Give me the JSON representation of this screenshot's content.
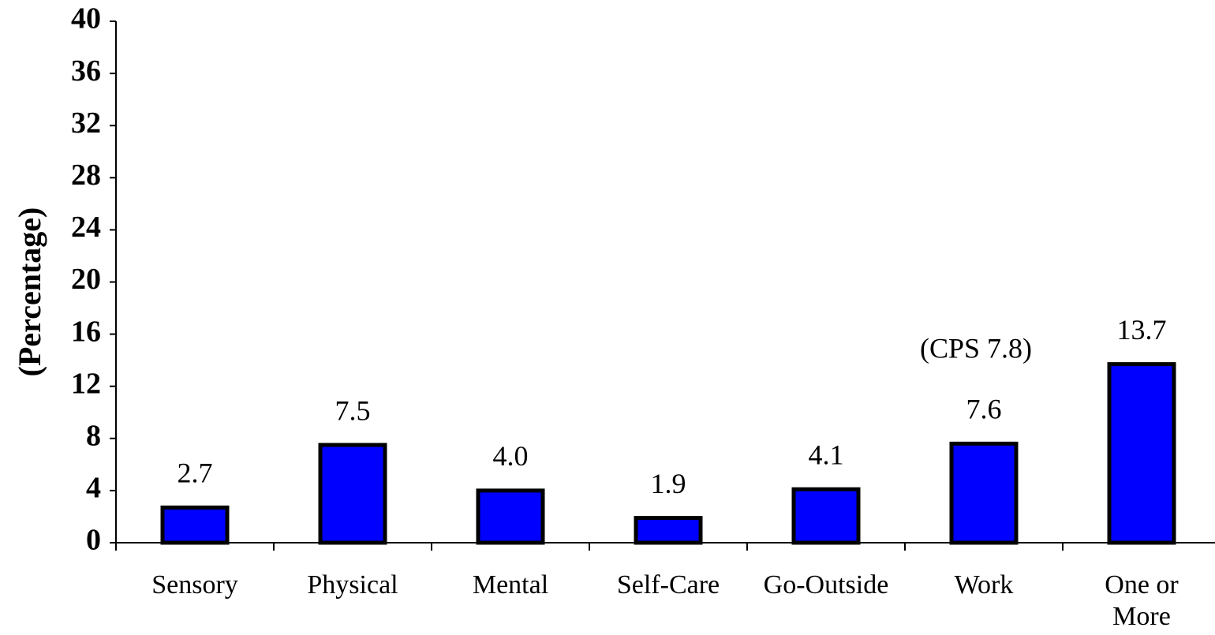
{
  "chart_data": {
    "type": "bar",
    "y_label": "(Percentage)",
    "categories": [
      "Sensory",
      "Physical",
      "Mental",
      "Self-Care",
      "Go-Outside",
      "Work",
      "One or More"
    ],
    "values": [
      2.7,
      7.5,
      4.0,
      1.9,
      4.1,
      7.6,
      13.7
    ],
    "value_labels": [
      "2.7",
      "7.5",
      "4.0",
      "1.9",
      "4.1",
      "7.6",
      "13.7"
    ],
    "color": "#0000ff",
    "ylim": [
      0,
      40
    ],
    "yticks": [
      0,
      4,
      8,
      12,
      16,
      20,
      24,
      28,
      32,
      36,
      40
    ],
    "annotations": [
      {
        "text": "(CPS 7.8)",
        "category": 5
      }
    ]
  }
}
